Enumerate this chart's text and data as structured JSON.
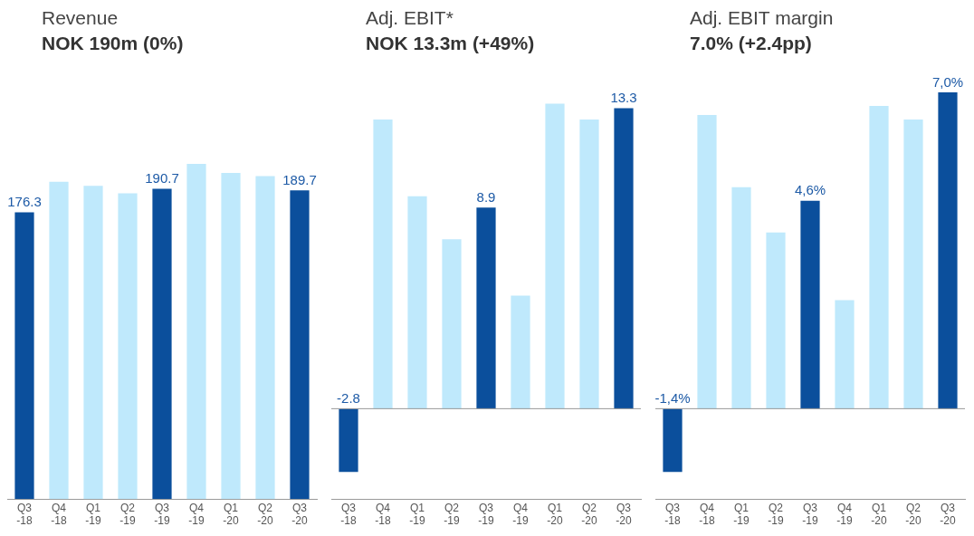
{
  "chart_data": [
    {
      "type": "bar",
      "title": "Revenue",
      "subtitle": "NOK 190m (0%)",
      "categories": [
        "Q3 -18",
        "Q4 -18",
        "Q1 -19",
        "Q2 -19",
        "Q3 -19",
        "Q4 -19",
        "Q1 -20",
        "Q2 -20",
        "Q3 -20"
      ],
      "values": [
        176.3,
        195,
        192.6,
        188,
        190.7,
        206,
        200.5,
        198.5,
        189.7
      ],
      "colors": [
        "#0b4f9c",
        "#bfe9fc",
        "#bfe9fc",
        "#bfe9fc",
        "#0b4f9c",
        "#bfe9fc",
        "#bfe9fc",
        "#bfe9fc",
        "#0b4f9c"
      ],
      "value_labels": [
        "176.3",
        null,
        null,
        null,
        "190.7",
        null,
        null,
        null,
        "189.7"
      ],
      "grid": false,
      "legend": false,
      "tick_labels": "x"
    },
    {
      "type": "bar",
      "title": "Adj. EBIT*",
      "subtitle": "NOK 13.3m (+49%)",
      "categories": [
        "Q3 -18",
        "Q4 -18",
        "Q1 -19",
        "Q2 -19",
        "Q3 -19",
        "Q4 -19",
        "Q1 -20",
        "Q2 -20",
        "Q3 -20"
      ],
      "values": [
        -2.8,
        12.8,
        9.4,
        7.5,
        8.9,
        5.0,
        13.5,
        12.8,
        13.3
      ],
      "colors": [
        "#0b4f9c",
        "#bfe9fc",
        "#bfe9fc",
        "#bfe9fc",
        "#0b4f9c",
        "#bfe9fc",
        "#bfe9fc",
        "#bfe9fc",
        "#0b4f9c"
      ],
      "value_labels": [
        "-2.8",
        null,
        null,
        null,
        "8.9",
        null,
        null,
        null,
        "13.3"
      ],
      "grid": false,
      "legend": false,
      "tick_labels": "x"
    },
    {
      "type": "bar",
      "title": "Adj. EBIT margin",
      "subtitle": "7.0% (+2.4pp)",
      "categories": [
        "Q3 -18",
        "Q4 -18",
        "Q1 -19",
        "Q2 -19",
        "Q3 -19",
        "Q4 -19",
        "Q1 -20",
        "Q2 -20",
        "Q3 -20"
      ],
      "values": [
        -1.4,
        6.5,
        4.9,
        3.9,
        4.6,
        2.4,
        6.7,
        6.4,
        7.0
      ],
      "colors": [
        "#0b4f9c",
        "#bfe9fc",
        "#bfe9fc",
        "#bfe9fc",
        "#0b4f9c",
        "#bfe9fc",
        "#bfe9fc",
        "#bfe9fc",
        "#0b4f9c"
      ],
      "value_labels": [
        "-1,4%",
        null,
        null,
        null,
        "4,6%",
        null,
        null,
        null,
        "7,0%"
      ],
      "grid": false,
      "legend": false,
      "tick_labels": "x"
    }
  ]
}
